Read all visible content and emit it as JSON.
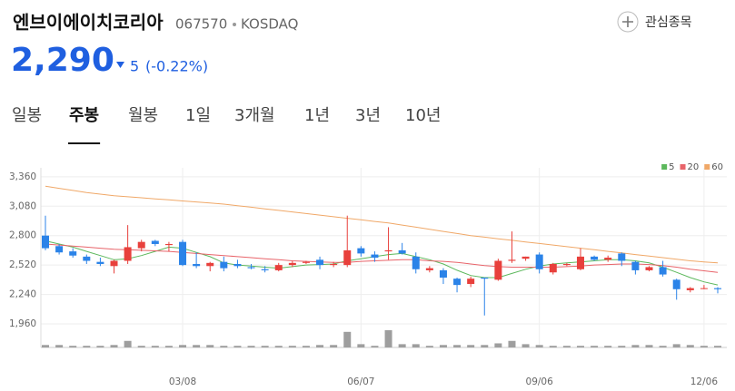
{
  "header": {
    "name": "엔브이에이치코리아",
    "code": "067570",
    "market": "KOSDAQ",
    "watch": "관심종목",
    "price": "2,290",
    "change": "5",
    "change_pct": "(-0.22%)"
  },
  "tabs": {
    "items": [
      "일봉",
      "주봉",
      "월봉",
      "1일",
      "3개월",
      "1년",
      "3년",
      "10년"
    ],
    "active": 1
  },
  "chart_data": {
    "type": "candlestick",
    "categories": [
      null,
      null,
      null,
      null,
      null,
      null,
      null,
      null,
      null,
      null,
      "03/08",
      null,
      null,
      null,
      null,
      null,
      null,
      null,
      null,
      null,
      null,
      null,
      null,
      "06/07",
      null,
      null,
      null,
      null,
      null,
      null,
      null,
      null,
      null,
      null,
      null,
      null,
      "09/06",
      null,
      null,
      null,
      null,
      null,
      null,
      null,
      null,
      null,
      null,
      null,
      "12/06",
      null
    ],
    "open": [
      2800,
      2700,
      2650,
      2600,
      2550,
      2510,
      2560,
      2680,
      2750,
      2710,
      2740,
      2530,
      2510,
      2550,
      2530,
      2500,
      2480,
      2470,
      2520,
      2540,
      2570,
      2520,
      2520,
      2680,
      2620,
      2650,
      2660,
      2600,
      2470,
      2470,
      2390,
      2340,
      2400,
      2380,
      2560,
      2580,
      2620,
      2450,
      2520,
      2480,
      2600,
      2570,
      2630,
      2550,
      2470,
      2500,
      2380,
      2280,
      2300,
      2300
    ],
    "high": [
      2990,
      2720,
      2680,
      2620,
      2590,
      2570,
      2900,
      2760,
      2760,
      2740,
      2760,
      2640,
      2550,
      2600,
      2570,
      2530,
      2510,
      2540,
      2560,
      2560,
      2600,
      2550,
      2990,
      2700,
      2650,
      2880,
      2730,
      2640,
      2510,
      2490,
      2400,
      2410,
      2400,
      2580,
      2840,
      2600,
      2640,
      2540,
      2540,
      2680,
      2610,
      2610,
      2640,
      2560,
      2510,
      2560,
      2390,
      2310,
      2330,
      2310
    ],
    "low": [
      2660,
      2620,
      2590,
      2530,
      2510,
      2440,
      2530,
      2650,
      2700,
      2650,
      2510,
      2490,
      2460,
      2460,
      2490,
      2480,
      2450,
      2460,
      2500,
      2530,
      2480,
      2500,
      2500,
      2600,
      2550,
      2570,
      2620,
      2440,
      2450,
      2340,
      2260,
      2310,
      2040,
      2370,
      2540,
      2560,
      2440,
      2430,
      2510,
      2470,
      2560,
      2550,
      2510,
      2430,
      2460,
      2410,
      2190,
      2260,
      2290,
      2250
    ],
    "close": [
      2680,
      2640,
      2610,
      2560,
      2530,
      2560,
      2690,
      2740,
      2720,
      2720,
      2520,
      2510,
      2540,
      2490,
      2510,
      2490,
      2470,
      2520,
      2540,
      2550,
      2520,
      2530,
      2660,
      2630,
      2590,
      2660,
      2630,
      2480,
      2490,
      2400,
      2330,
      2390,
      2390,
      2560,
      2570,
      2600,
      2480,
      2530,
      2530,
      2600,
      2570,
      2590,
      2560,
      2470,
      2500,
      2430,
      2290,
      2300,
      2300,
      2290
    ],
    "volume": [
      3,
      3,
      2,
      2,
      2,
      3,
      8,
      2,
      2,
      2,
      3,
      3,
      3,
      2,
      2,
      2,
      2,
      2,
      2,
      2,
      3,
      3,
      19,
      4,
      2,
      21,
      4,
      4,
      2,
      3,
      3,
      3,
      3,
      5,
      8,
      4,
      3,
      2,
      2,
      2,
      2,
      2,
      2,
      3,
      3,
      2,
      4,
      3,
      2,
      2
    ],
    "series": [
      {
        "name": "5",
        "color": "#5cb85c",
        "values": [
          2750,
          2720,
          2690,
          2650,
          2610,
          2570,
          2580,
          2610,
          2650,
          2690,
          2680,
          2640,
          2600,
          2540,
          2520,
          2510,
          2500,
          2490,
          2505,
          2520,
          2525,
          2530,
          2560,
          2580,
          2600,
          2620,
          2630,
          2600,
          2570,
          2530,
          2470,
          2420,
          2400,
          2400,
          2440,
          2480,
          2510,
          2530,
          2540,
          2550,
          2560,
          2570,
          2570,
          2560,
          2540,
          2500,
          2450,
          2400,
          2360,
          2330
        ]
      },
      {
        "name": "20",
        "color": "#e8646a",
        "values": [
          2720,
          2710,
          2700,
          2690,
          2680,
          2670,
          2665,
          2660,
          2655,
          2650,
          2640,
          2630,
          2620,
          2610,
          2600,
          2590,
          2580,
          2570,
          2560,
          2555,
          2550,
          2545,
          2545,
          2555,
          2560,
          2565,
          2570,
          2570,
          2560,
          2555,
          2545,
          2530,
          2515,
          2505,
          2500,
          2500,
          2500,
          2500,
          2505,
          2510,
          2520,
          2525,
          2530,
          2530,
          2525,
          2515,
          2500,
          2480,
          2465,
          2450
        ]
      },
      {
        "name": "60",
        "color": "#f0a868",
        "values": [
          3270,
          3250,
          3230,
          3210,
          3195,
          3180,
          3170,
          3160,
          3150,
          3140,
          3130,
          3120,
          3110,
          3100,
          3085,
          3070,
          3055,
          3040,
          3025,
          3010,
          2995,
          2980,
          2965,
          2950,
          2935,
          2920,
          2900,
          2880,
          2860,
          2840,
          2820,
          2800,
          2785,
          2770,
          2755,
          2740,
          2725,
          2710,
          2695,
          2680,
          2665,
          2650,
          2635,
          2620,
          2605,
          2590,
          2575,
          2560,
          2550,
          2540
        ]
      }
    ],
    "up_color": "#e8403c",
    "down_color": "#2b83e8",
    "volume_color": "#9e9e9e",
    "ylim": [
      1960,
      3445
    ],
    "yticks": [
      {
        "value": 1960,
        "label": "1,960"
      },
      {
        "value": 2240,
        "label": "2,240"
      },
      {
        "value": 2520,
        "label": "2,520"
      },
      {
        "value": 2800,
        "label": "2,800"
      },
      {
        "value": 3080,
        "label": "3,080"
      },
      {
        "value": 3360,
        "label": "3,360"
      }
    ],
    "grid": true,
    "legend": "top-right"
  }
}
